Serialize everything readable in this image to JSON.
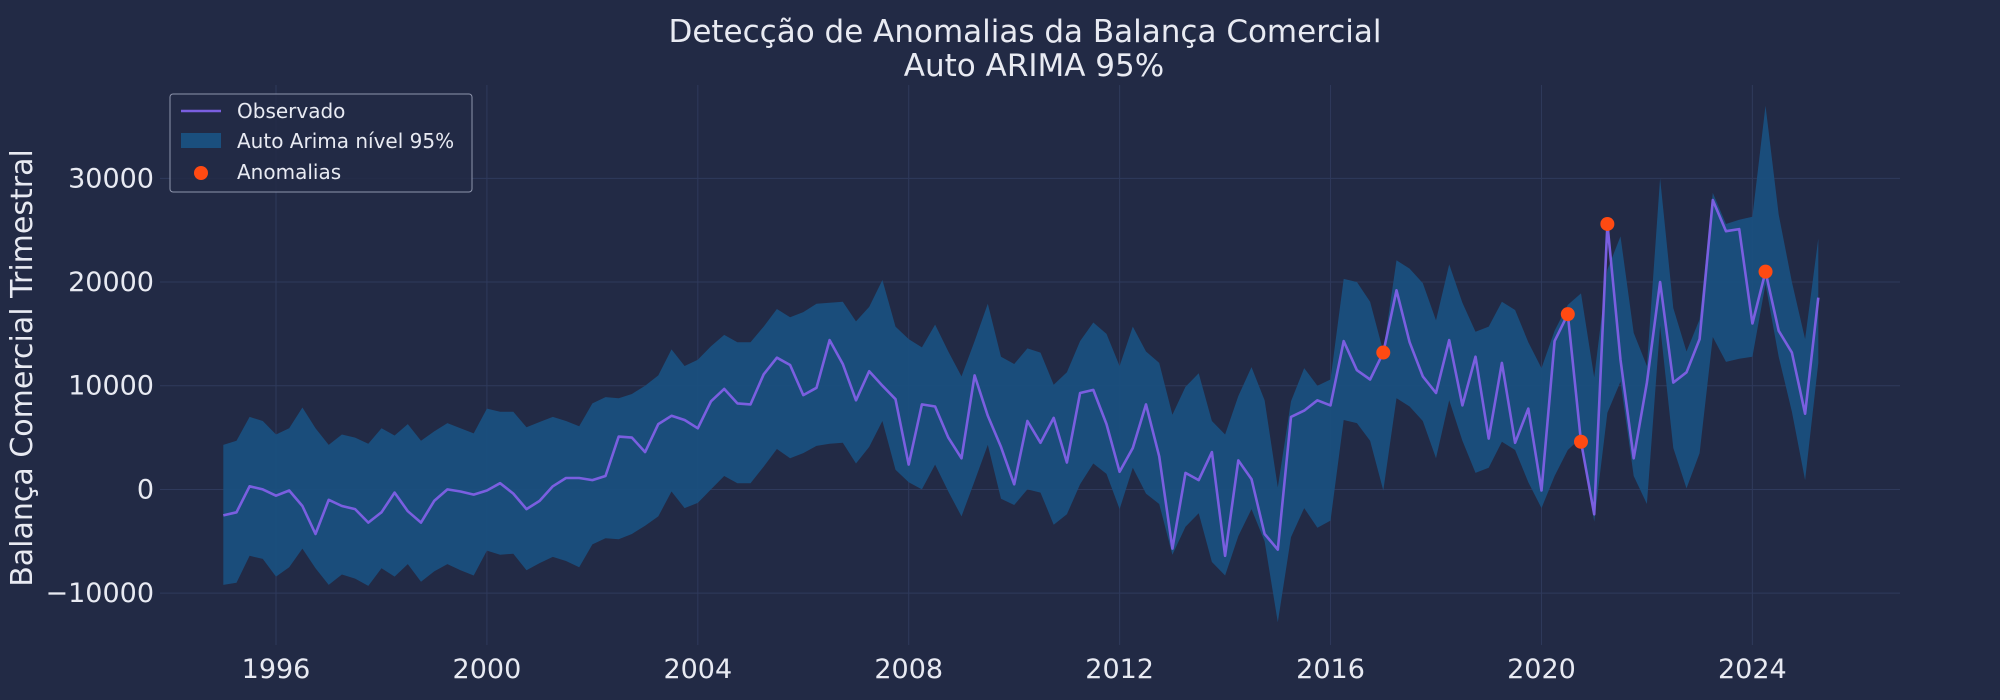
{
  "colors": {
    "background": "#222a45",
    "grid": "#2f3a5c",
    "observed_line": "#7a5fe0",
    "band_fill": "#1a4f7e",
    "anomaly": "#ff4a12",
    "text": "#e8eaf2"
  },
  "chart_data": {
    "type": "line",
    "title": "Detecção de Anomalias da Balança Comercial",
    "subtitle": "Auto ARIMA 95%",
    "xlabel": "",
    "ylabel": "Balança Comercial Trimestral",
    "xlim": [
      1993.8,
      2026.8
    ],
    "ylim": [
      -15000,
      39000
    ],
    "x_ticks": [
      1996,
      2000,
      2004,
      2008,
      2012,
      2016,
      2020,
      2024
    ],
    "y_ticks": [
      -10000,
      0,
      10000,
      20000,
      30000
    ],
    "y_tick_labels": [
      "−10000",
      "0",
      "10000",
      "20000",
      "30000"
    ],
    "grid": true,
    "legend_position": "top-left",
    "legend": [
      "Observado",
      "Auto Arima nível 95%",
      "Anomalias"
    ],
    "x_start": 1995.0,
    "x_step": 0.25,
    "series": [
      {
        "name": "Observado",
        "values": [
          -2500,
          -2200,
          300,
          0,
          -600,
          -100,
          -1600,
          -4300,
          -1000,
          -1600,
          -1900,
          -3200,
          -2200,
          -300,
          -2100,
          -3200,
          -1100,
          0,
          -200,
          -500,
          -100,
          600,
          -400,
          -1900,
          -1100,
          300,
          1100,
          1100,
          900,
          1300,
          5100,
          5000,
          3600,
          6300,
          7100,
          6700,
          5900,
          8500,
          9700,
          8300,
          8200,
          11100,
          12700,
          12000,
          9100,
          9800,
          14400,
          12100,
          8600,
          11400,
          10000,
          8700,
          2400,
          8200,
          8000,
          5000,
          3000,
          11000,
          7100,
          4100,
          500,
          6600,
          4500,
          6900,
          2600,
          9300,
          9600,
          6300,
          1700,
          4000,
          8200,
          3200,
          -5700,
          1600,
          900,
          3600,
          -6400,
          2800,
          1000,
          -4300,
          -5800,
          7000,
          7600,
          8600,
          8100,
          14300,
          11500,
          10600,
          13200,
          19200,
          14200,
          10900,
          9300,
          14400,
          8100,
          12800,
          4900,
          12200,
          4500,
          7800,
          -100,
          14300,
          16900,
          4600,
          -2400,
          25600,
          12500,
          3000,
          10300,
          20000,
          10300,
          11300,
          14500,
          27900,
          24900,
          25100,
          16000,
          21000,
          15300,
          13200,
          7300,
          18500
        ]
      },
      {
        "name": "Auto Arima nível 95%",
        "upper": [
          4300,
          4700,
          7000,
          6600,
          5300,
          5900,
          7900,
          5900,
          4300,
          5300,
          5000,
          4400,
          5900,
          5200,
          6300,
          4700,
          5600,
          6400,
          5900,
          5400,
          7800,
          7500,
          7500,
          6000,
          6500,
          7000,
          6600,
          6100,
          8300,
          8900,
          8800,
          9200,
          10000,
          11000,
          13500,
          11900,
          12500,
          13800,
          14900,
          14200,
          14200,
          15700,
          17400,
          16600,
          17100,
          17900,
          18000,
          18100,
          16200,
          17600,
          20200,
          15700,
          14500,
          13700,
          15900,
          13300,
          10900,
          14300,
          17900,
          12800,
          12100,
          13600,
          13200,
          10100,
          11300,
          14300,
          16100,
          15000,
          11900,
          15700,
          13300,
          12200,
          7200,
          9900,
          11200,
          6600,
          5300,
          9000,
          11800,
          8600,
          200,
          8500,
          11700,
          10000,
          10600,
          20300,
          20000,
          18100,
          13300,
          22100,
          21300,
          19900,
          16300,
          21700,
          18000,
          15200,
          15700,
          18100,
          17300,
          14200,
          11700,
          15300,
          17800,
          18900,
          10800,
          21200,
          24400,
          15100,
          11900,
          30000,
          17500,
          13300,
          16400,
          28600,
          25600,
          26000,
          26300,
          37000,
          26500,
          20000,
          14500,
          24200
        ]
      },
      {
        "name": "band-lower",
        "values": [
          -9200,
          -9000,
          -6400,
          -6700,
          -8400,
          -7500,
          -5700,
          -7600,
          -9200,
          -8200,
          -8600,
          -9300,
          -7600,
          -8400,
          -7200,
          -8900,
          -7900,
          -7200,
          -7800,
          -8300,
          -5900,
          -6300,
          -6200,
          -7800,
          -7100,
          -6500,
          -6900,
          -7500,
          -5300,
          -4700,
          -4800,
          -4300,
          -3500,
          -2600,
          -200,
          -1800,
          -1300,
          0,
          1300,
          600,
          600,
          2200,
          3900,
          3000,
          3500,
          4200,
          4400,
          4500,
          2500,
          4100,
          6600,
          1900,
          700,
          0,
          2400,
          -200,
          -2600,
          800,
          4300,
          -900,
          -1500,
          0,
          -300,
          -3400,
          -2400,
          500,
          2500,
          1500,
          -1900,
          2100,
          -400,
          -1400,
          -6300,
          -3600,
          -2300,
          -7000,
          -8300,
          -4500,
          -1900,
          -5000,
          -12800,
          -4600,
          -1800,
          -3700,
          -3000,
          6700,
          6400,
          4700,
          -100,
          8800,
          8000,
          6600,
          3000,
          8600,
          4700,
          1600,
          2100,
          4600,
          3800,
          700,
          -1800,
          1300,
          3800,
          5000,
          -3100,
          7400,
          10400,
          1300,
          -1400,
          15800,
          4000,
          100,
          3500,
          14700,
          12300,
          12600,
          12800,
          19800,
          12800,
          7500,
          900,
          12200
        ]
      }
    ],
    "anomalies": [
      {
        "x": 2017.0,
        "y": 13200
      },
      {
        "x": 2020.5,
        "y": 16900
      },
      {
        "x": 2020.75,
        "y": 4600
      },
      {
        "x": 2021.25,
        "y": 25600
      },
      {
        "x": 2024.25,
        "y": 21000
      }
    ]
  }
}
